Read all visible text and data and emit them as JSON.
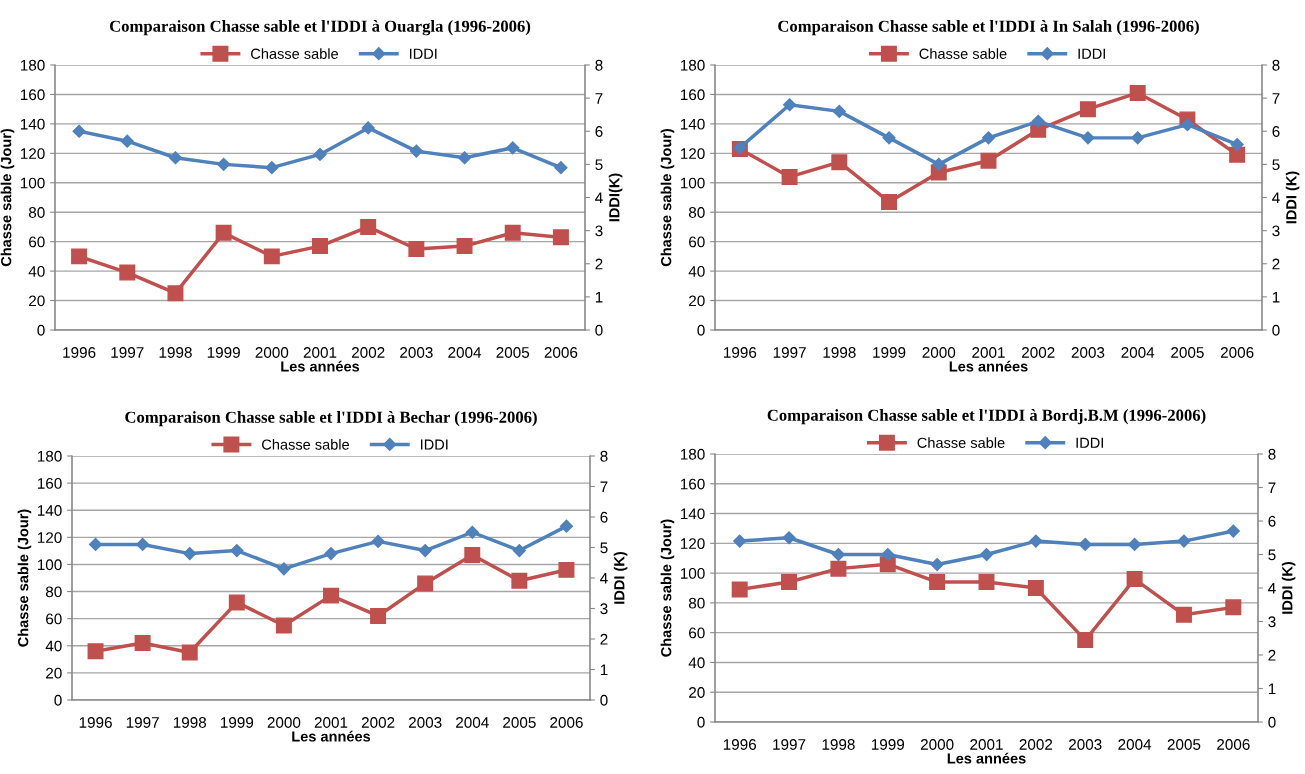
{
  "chart_data": [
    {
      "type": "line",
      "title": "Comparaison Chasse sable et l'IDDI à Ouargla (1996-2006)",
      "xlabel": "Les années",
      "ylabel": "Chasse sable (Jour)",
      "y2label": "IDDI(K)",
      "categories": [
        "1996",
        "1997",
        "1998",
        "1999",
        "2000",
        "2001",
        "2002",
        "2003",
        "2004",
        "2005",
        "2006"
      ],
      "series": [
        {
          "name": "Chasse sable",
          "color": "#c0504d",
          "marker": "square",
          "values": [
            50,
            39,
            25,
            66,
            50,
            57,
            70,
            55,
            57,
            66,
            63
          ]
        },
        {
          "name": "IDDI",
          "color": "#4f81bd",
          "marker": "diamond",
          "axis": "y2",
          "values": [
            6.0,
            5.7,
            5.2,
            5.0,
            4.9,
            5.3,
            6.1,
            5.4,
            5.2,
            5.5,
            4.9
          ]
        }
      ],
      "ylim": [
        0,
        180
      ],
      "yticks": [
        0,
        20,
        40,
        60,
        80,
        100,
        120,
        140,
        160,
        180
      ],
      "y2lim": [
        0,
        8
      ],
      "y2ticks": [
        0,
        1,
        2,
        3,
        4,
        5,
        6,
        7,
        8
      ],
      "grid": "y",
      "legend": "top",
      "line_style": "solid"
    },
    {
      "type": "line",
      "title": "Comparaison Chasse sable et l'IDDI à In Salah (1996-2006)",
      "xlabel": "Les années",
      "ylabel": "Chasse sable (Jour)",
      "y2label": "IDDI (K)",
      "categories": [
        "1996",
        "1997",
        "1998",
        "1999",
        "2000",
        "2001",
        "2002",
        "2003",
        "2004",
        "2005",
        "2006"
      ],
      "series": [
        {
          "name": "Chasse sable",
          "color": "#c0504d",
          "marker": "square",
          "values": [
            123,
            104,
            114,
            87,
            107,
            115,
            136,
            150,
            161,
            143,
            119
          ]
        },
        {
          "name": "IDDI",
          "color": "#4f81bd",
          "marker": "diamond",
          "axis": "y2",
          "values": [
            5.5,
            6.8,
            6.6,
            5.8,
            5.0,
            5.8,
            6.3,
            5.8,
            5.8,
            6.2,
            5.6
          ]
        }
      ],
      "ylim": [
        0,
        180
      ],
      "yticks": [
        0,
        20,
        40,
        60,
        80,
        100,
        120,
        140,
        160,
        180
      ],
      "y2lim": [
        0,
        8
      ],
      "y2ticks": [
        0,
        1,
        2,
        3,
        4,
        5,
        6,
        7,
        8
      ],
      "grid": "y",
      "legend": "top",
      "line_style": "solid"
    },
    {
      "type": "line",
      "title": "Comparaison Chasse sable et l'IDDI à Bechar (1996-2006)",
      "xlabel": "Les années",
      "ylabel": "Chasse sable (Jour)",
      "y2label": "IDDI (K)",
      "categories": [
        "1996",
        "1997",
        "1998",
        "1999",
        "2000",
        "2001",
        "2002",
        "2003",
        "2004",
        "2005",
        "2006"
      ],
      "series": [
        {
          "name": "Chasse sable",
          "color": "#c0504d",
          "marker": "square",
          "values": [
            36,
            42,
            35,
            72,
            55,
            77,
            62,
            86,
            107,
            88,
            96
          ]
        },
        {
          "name": "IDDI",
          "color": "#4f81bd",
          "marker": "diamond",
          "axis": "y2",
          "values": [
            5.1,
            5.1,
            4.8,
            4.9,
            4.3,
            4.8,
            5.2,
            4.9,
            5.5,
            4.9,
            5.7
          ]
        }
      ],
      "ylim": [
        0,
        180
      ],
      "yticks": [
        0,
        20,
        40,
        60,
        80,
        100,
        120,
        140,
        160,
        180
      ],
      "y2lim": [
        0,
        8
      ],
      "y2ticks": [
        0,
        1,
        2,
        3,
        4,
        5,
        6,
        7,
        8
      ],
      "grid": "y",
      "legend": "top",
      "line_style": "solid"
    },
    {
      "type": "line",
      "title": "Comparaison Chasse sable et l'IDDI à Bordj.B.M (1996-2006)",
      "xlabel": "Les années",
      "ylabel": "Chasse sable (Jour)",
      "y2label": "IDDI (K)",
      "categories": [
        "1996",
        "1997",
        "1998",
        "1999",
        "2000",
        "2001",
        "2002",
        "2003",
        "2004",
        "2005",
        "2006"
      ],
      "series": [
        {
          "name": "Chasse sable",
          "color": "#c0504d",
          "marker": "square",
          "values": [
            89,
            94,
            103,
            106,
            94,
            94,
            90,
            55,
            96,
            72,
            77
          ]
        },
        {
          "name": "IDDI",
          "color": "#4f81bd",
          "marker": "diamond",
          "axis": "y2",
          "values": [
            5.4,
            5.5,
            5.0,
            5.0,
            4.7,
            5.0,
            5.4,
            5.3,
            5.3,
            5.4,
            5.7
          ]
        }
      ],
      "ylim": [
        0,
        180
      ],
      "yticks": [
        0,
        20,
        40,
        60,
        80,
        100,
        120,
        140,
        160,
        180
      ],
      "y2lim": [
        0,
        8
      ],
      "y2ticks": [
        0,
        1,
        2,
        3,
        4,
        5,
        6,
        7,
        8
      ],
      "grid": "y",
      "legend": "top",
      "line_style": "solid"
    }
  ]
}
